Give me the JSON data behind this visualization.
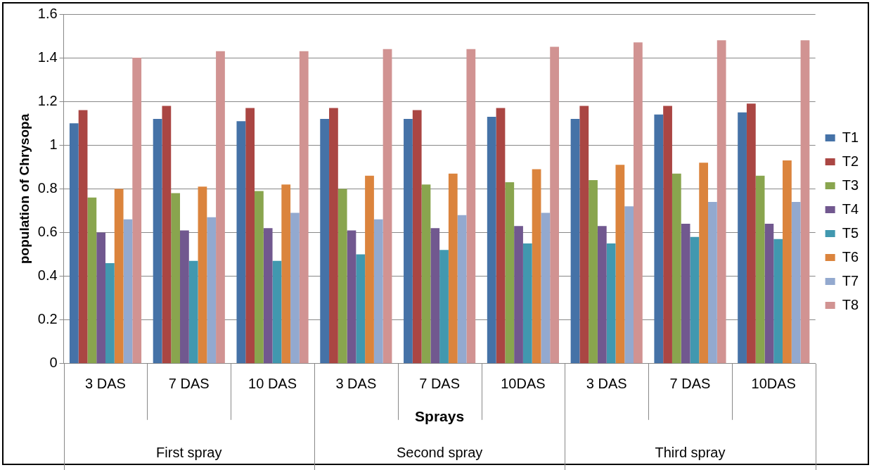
{
  "chart_data": {
    "type": "bar",
    "xlabel": "Sprays",
    "ylabel": "population of Chrysopa",
    "categories": [
      "3 DAS",
      "7 DAS",
      "10 DAS",
      "3 DAS",
      "7 DAS",
      "10DAS",
      "3 DAS",
      "7 DAS",
      "10DAS"
    ],
    "annotations": [
      "First spray",
      "Second spray",
      "Third spray"
    ],
    "series": [
      {
        "name": "T1",
        "color": "#4572a7",
        "values": [
          1.1,
          1.12,
          1.11,
          1.12,
          1.12,
          1.13,
          1.12,
          1.14,
          1.15
        ]
      },
      {
        "name": "T2",
        "color": "#aa4643",
        "values": [
          1.16,
          1.18,
          1.17,
          1.17,
          1.16,
          1.17,
          1.18,
          1.18,
          1.19
        ]
      },
      {
        "name": "T3",
        "color": "#89a54e",
        "values": [
          0.76,
          0.78,
          0.79,
          0.8,
          0.82,
          0.83,
          0.84,
          0.87,
          0.86
        ]
      },
      {
        "name": "T4",
        "color": "#71588f",
        "values": [
          0.6,
          0.61,
          0.62,
          0.61,
          0.62,
          0.63,
          0.63,
          0.64,
          0.64
        ]
      },
      {
        "name": "T5",
        "color": "#4198af",
        "values": [
          0.46,
          0.47,
          0.47,
          0.5,
          0.52,
          0.55,
          0.55,
          0.58,
          0.57
        ]
      },
      {
        "name": "T6",
        "color": "#db843d",
        "values": [
          0.8,
          0.81,
          0.82,
          0.86,
          0.87,
          0.89,
          0.91,
          0.92,
          0.93
        ]
      },
      {
        "name": "T7",
        "color": "#93a9cf",
        "values": [
          0.66,
          0.67,
          0.69,
          0.66,
          0.68,
          0.69,
          0.72,
          0.74,
          0.74
        ]
      },
      {
        "name": "T8",
        "color": "#d19392",
        "values": [
          1.4,
          1.43,
          1.43,
          1.44,
          1.44,
          1.45,
          1.47,
          1.48,
          1.48
        ]
      }
    ],
    "ylim": [
      0,
      1.6
    ],
    "yticks": [
      0,
      0.2,
      0.4,
      0.6,
      0.8,
      1,
      1.2,
      1.4,
      1.6
    ],
    "grid": "y",
    "legend": "right"
  }
}
